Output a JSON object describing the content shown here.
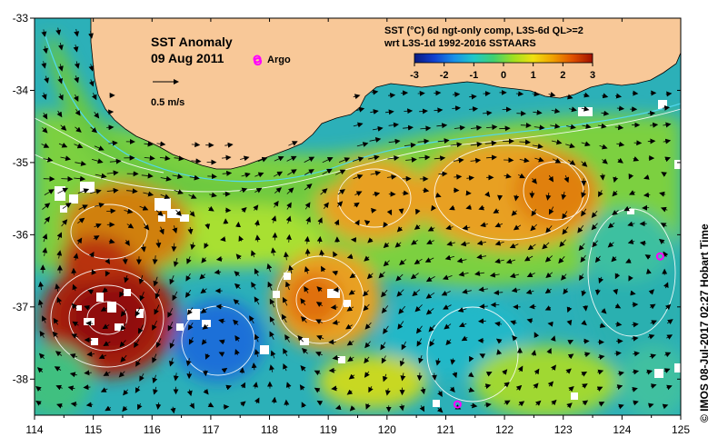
{
  "map": {
    "title": "SST Anomaly",
    "date": "09 Aug 2011",
    "argo_label": "Argo",
    "velocity_label": "0.5 m/s",
    "product_line1": "SST (°C) 6d ngt-only comp, L3S-6d QL>=2",
    "product_line2": "wrt L3S-1d 1992-2016 SSTAARS",
    "credit": "© IMOS 08-Jul-2017 02:27 Hobart Time",
    "colorbar": {
      "min": -3,
      "max": 3,
      "ticks": [
        "-3",
        "-2",
        "-1",
        "0",
        "1",
        "2",
        "3"
      ],
      "colors": [
        "#0a1a80",
        "#1040d0",
        "#1890e8",
        "#20c8c8",
        "#40d070",
        "#a0e020",
        "#f0e010",
        "#f0a000",
        "#e05000",
        "#a01000"
      ]
    },
    "lon_range": [
      114,
      125
    ],
    "lat_range": [
      -38.5,
      -33
    ],
    "lon_ticks": [
      "114",
      "115",
      "116",
      "117",
      "118",
      "119",
      "120",
      "121",
      "122",
      "123",
      "124",
      "125"
    ],
    "lat_ticks": [
      "-33",
      "-34",
      "-35",
      "-36",
      "-37",
      "-38"
    ],
    "land_color": "#f8c898",
    "missing_color": "#ffffff",
    "argo_floats": [
      {
        "lon": 117.8,
        "lat": -33.6
      },
      {
        "lon": 121.2,
        "lat": -38.35
      },
      {
        "lon": 124.65,
        "lat": -36.3
      }
    ]
  }
}
